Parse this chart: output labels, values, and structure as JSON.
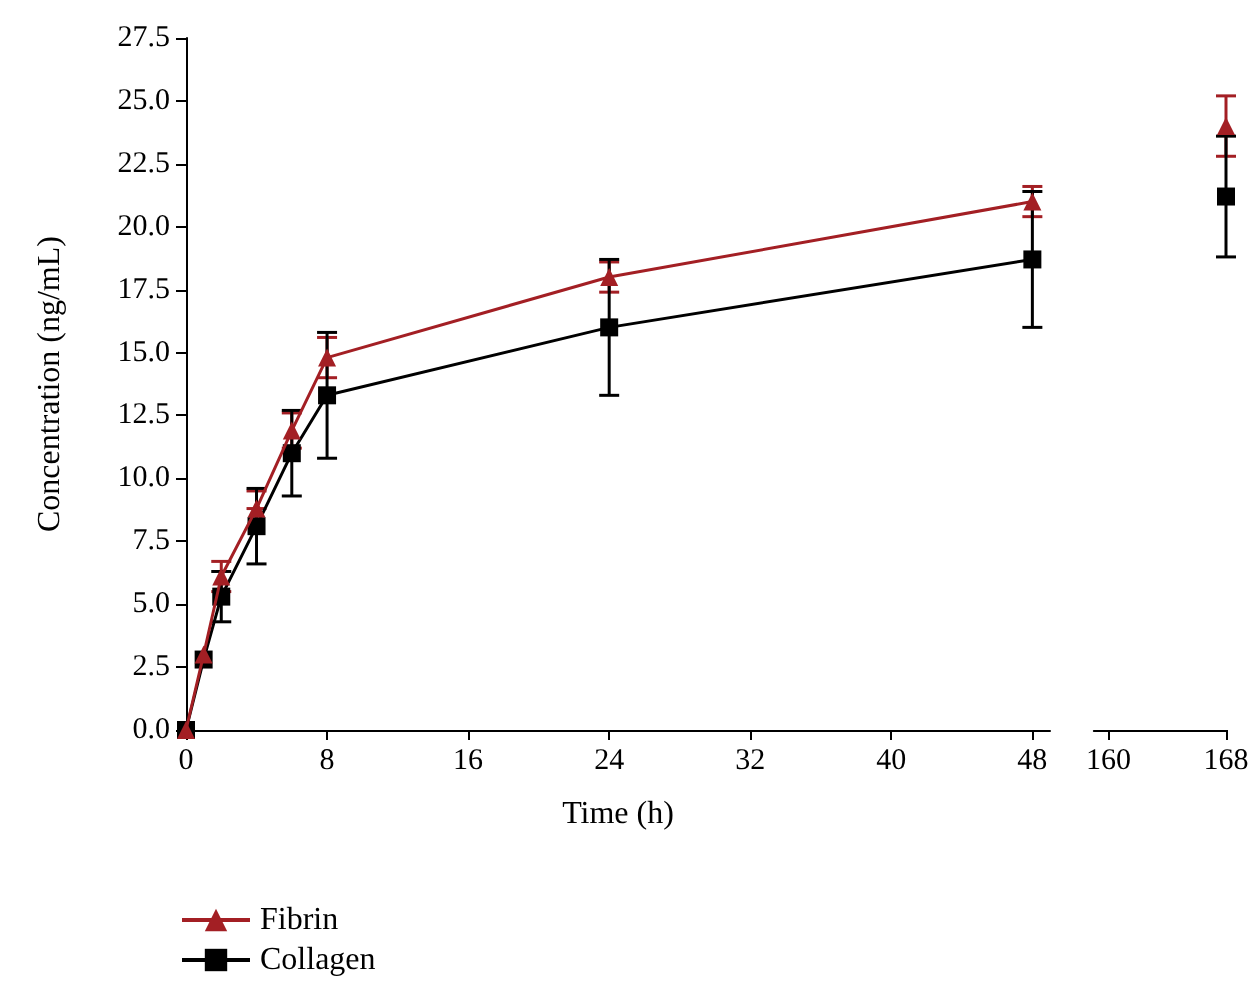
{
  "chart_data": [
    {
      "type": "line",
      "xlabel": "Time (h)",
      "ylabel": "Concentration (ng/mL)",
      "x": [
        0,
        1,
        2,
        4,
        6,
        8,
        24,
        48
      ],
      "xlim": [
        0,
        49
      ],
      "xticks": [
        0,
        8,
        16,
        24,
        32,
        40,
        48
      ],
      "ylim": [
        0,
        27.5
      ],
      "yticks": [
        {
          "value": 0,
          "label": "0.0"
        },
        2.5,
        {
          "value": 5,
          "label": "5.0"
        },
        7.5,
        {
          "value": 10,
          "label": "10.0"
        },
        12.5,
        {
          "value": 15,
          "label": "15.0"
        },
        17.5,
        {
          "value": 20,
          "label": "20.0"
        },
        22.5,
        {
          "value": 25,
          "label": "25.0"
        },
        27.5
      ],
      "legend": "bottom left",
      "series": [
        {
          "name": "Fibrin",
          "color": "#a31f24",
          "marker": "triangle",
          "values": [
            0,
            3.0,
            6.1,
            8.8,
            11.9,
            14.8,
            18.0,
            21.0
          ],
          "errors": [
            null,
            null,
            0.6,
            [
              8.8,
              9.5
            ],
            0.7,
            0.8,
            0.6,
            0.6
          ]
        },
        {
          "name": "Collagen",
          "color": "#000000",
          "marker": "square",
          "values": [
            0,
            2.8,
            5.3,
            8.1,
            11.0,
            13.3,
            16.0,
            18.7
          ],
          "errors": [
            null,
            null,
            1.0,
            1.5,
            1.7,
            2.5,
            2.7,
            2.7
          ]
        }
      ]
    },
    {
      "type": "line",
      "x": [
        168
      ],
      "xlim": [
        159,
        168
      ],
      "xticks": [
        160,
        168
      ],
      "ylim": [
        0,
        27.5
      ],
      "tick_labels": "x",
      "series": [
        {
          "color": "#a31f24",
          "marker": "triangle",
          "values": [
            24.0
          ],
          "errors": [
            1.2
          ]
        },
        {
          "color": "#000000",
          "marker": "square",
          "values": [
            21.2
          ],
          "errors": [
            2.4
          ]
        }
      ]
    }
  ]
}
